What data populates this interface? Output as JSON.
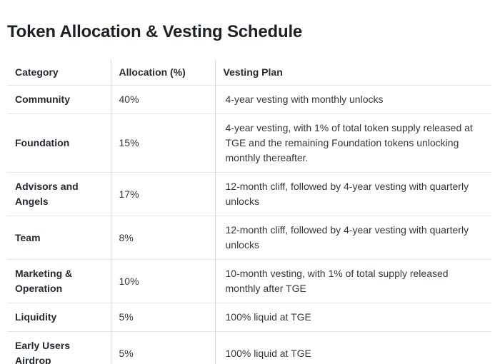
{
  "page": {
    "title": "Token Allocation & Vesting Schedule"
  },
  "table": {
    "columns": [
      "Category",
      "Allocation (%)",
      "Vesting Plan"
    ],
    "rows": [
      {
        "category": "Community",
        "allocation": "40%",
        "vesting": "4-year vesting with monthly unlocks"
      },
      {
        "category": "Foundation",
        "allocation": "15%",
        "vesting": "4-year vesting, with 1% of total token supply released at TGE and the remaining Foundation tokens unlocking monthly thereafter."
      },
      {
        "category": "Advisors and Angels",
        "allocation": "17%",
        "vesting": "12-month cliff, followed by 4-year vesting with quarterly unlocks"
      },
      {
        "category": "Team",
        "allocation": "8%",
        "vesting": "12-month cliff, followed by 4-year vesting with quarterly unlocks"
      },
      {
        "category": "Marketing & Operation",
        "allocation": "10%",
        "vesting": "10-month vesting, with 1% of total supply released monthly after TGE"
      },
      {
        "category": "Liquidity",
        "allocation": "5%",
        "vesting": "100% liquid at TGE"
      },
      {
        "category": "Early Users Airdrop",
        "allocation": "5%",
        "vesting": "100% liquid at TGE"
      }
    ]
  },
  "colors": {
    "title_text": "#1c2128",
    "header_text": "#242a31",
    "body_text": "#32383e",
    "border_vertical": "#dcdfe2",
    "border_horizontal": "#e4e6e9",
    "background": "#ffffff"
  }
}
